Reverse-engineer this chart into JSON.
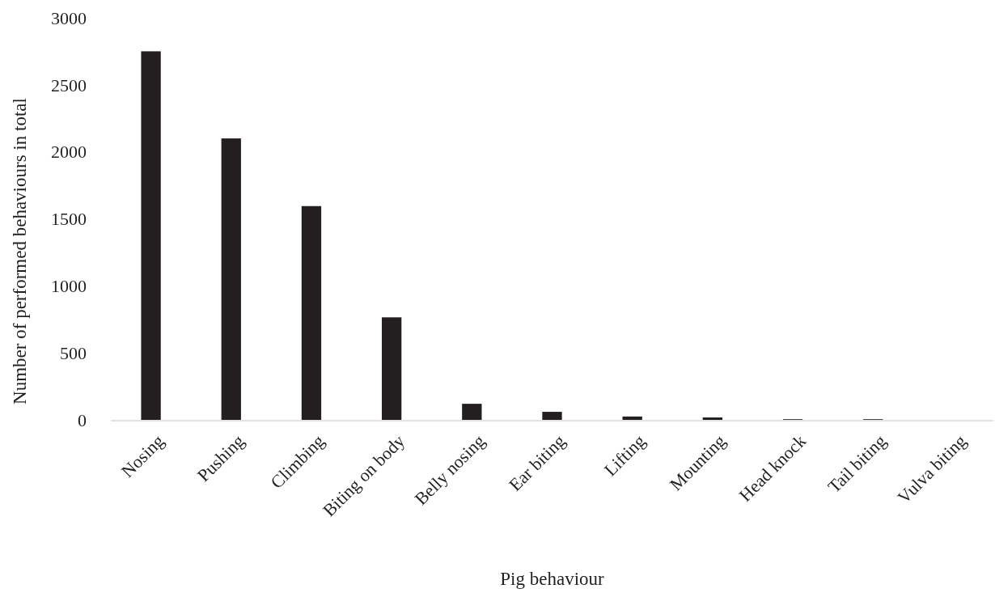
{
  "chart_data": {
    "type": "bar",
    "xlabel": "Pig behaviour",
    "ylabel": "Number of performed  behaviours in total",
    "categories": [
      "Nosing",
      "Pushing",
      "Climbing",
      "Biting on body",
      "Belly nosing",
      "Ear biting",
      "Lifting",
      "Mounting",
      "Head knock",
      "Tail biting",
      "Vulva biting"
    ],
    "values": [
      2750,
      2100,
      1595,
      765,
      120,
      60,
      25,
      18,
      5,
      5,
      0
    ],
    "color": "#231f20",
    "ylim": [
      0,
      3000
    ],
    "yticks": [
      0,
      500,
      1000,
      1500,
      2000,
      2500,
      3000
    ],
    "grid": false
  }
}
